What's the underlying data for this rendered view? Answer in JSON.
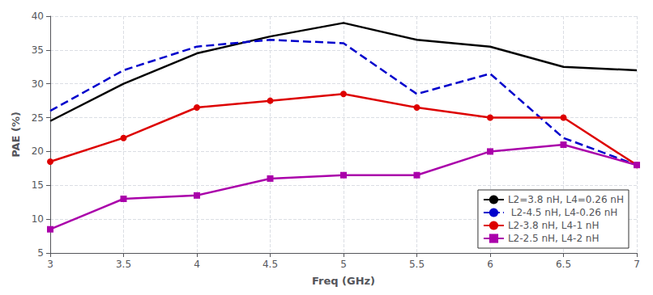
{
  "chart_data": {
    "type": "line",
    "x": [
      3,
      3.5,
      4,
      4.5,
      5,
      5.5,
      6,
      6.5,
      7
    ],
    "xlabel": "Freq (GHz)",
    "ylabel": "PAE (%)",
    "xlim": [
      3,
      7
    ],
    "ylim": [
      5,
      40
    ],
    "xticks": [
      3,
      3.5,
      4,
      4.5,
      5,
      5.5,
      6,
      6.5,
      7
    ],
    "yticks": [
      5,
      10,
      15,
      20,
      25,
      30,
      35,
      40
    ],
    "grid": true,
    "legend": "lower right",
    "series": [
      {
        "name": "L2=3.8 nH, L4=0.26 nH",
        "color": "#000000",
        "line_style": "solid",
        "marker": "none",
        "values": [
          24.5,
          30.0,
          34.5,
          37.0,
          39.0,
          36.5,
          35.5,
          32.5,
          32.0
        ]
      },
      {
        "name": " L2-4.5 nH, L4-0.26 nH",
        "color": "#0000CC",
        "line_style": "dashed",
        "marker": "none",
        "values": [
          26.0,
          32.0,
          35.5,
          36.5,
          36.0,
          28.5,
          31.5,
          22.0,
          18.0
        ]
      },
      {
        "name": "L2-3.8 nH, L4-1 nH",
        "color": "#DD0000",
        "line_style": "solid",
        "marker": "circle",
        "values": [
          18.5,
          22.0,
          26.5,
          27.5,
          28.5,
          26.5,
          25.0,
          25.0,
          18.0
        ]
      },
      {
        "name": "L2-2.5 nH, L4-2 nH",
        "color": "#AA00AA",
        "line_style": "solid",
        "marker": "square",
        "values": [
          8.5,
          13.0,
          13.5,
          16.0,
          16.5,
          16.5,
          20.0,
          21.0,
          18.0
        ]
      }
    ]
  }
}
